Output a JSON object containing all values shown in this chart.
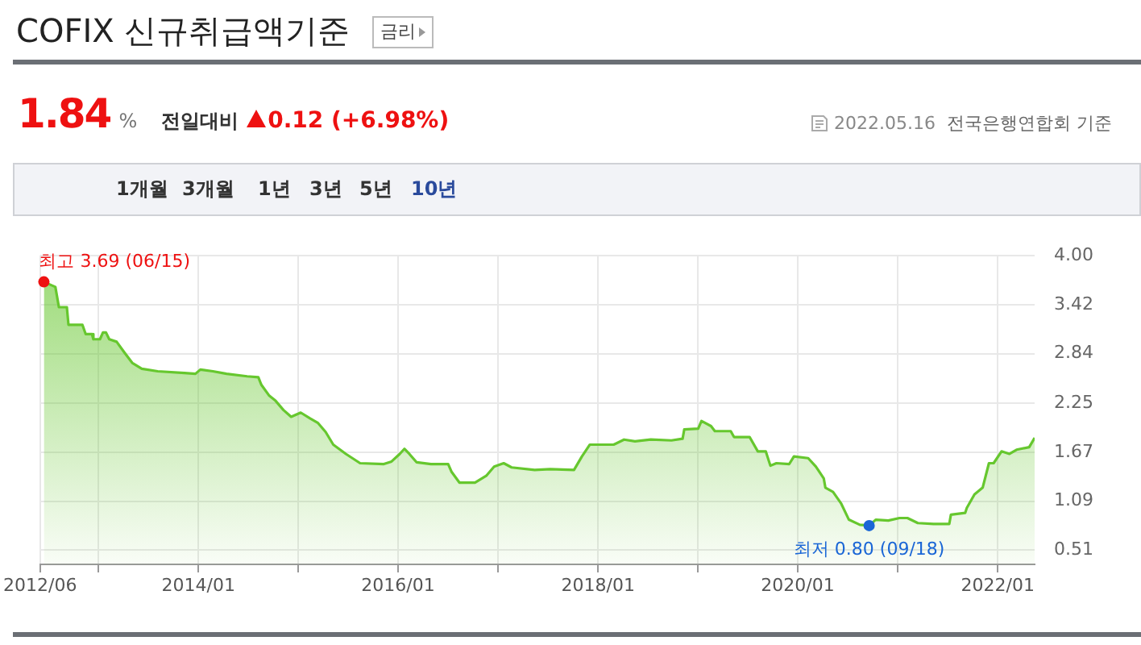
{
  "chart_data": {
    "type": "area",
    "title": "COFIX 신규취급액기준",
    "annotations": [
      {
        "text": "최고 3.69 (06/15)",
        "x": "2012-06-15",
        "y": 3.69
      },
      {
        "text": "최저 0.80 (09/18)",
        "x": "2020-09-18",
        "y": 0.8
      },
      "금리",
      "1.84",
      "%",
      "전일대비",
      "0.12 (+6.98%)",
      "2022.05.16",
      "전국은행연합회 기준",
      "1개월",
      "3개월",
      "1년",
      "3년",
      "5년",
      "10년"
    ],
    "x": [
      "2012-06-15",
      "2012-07-27",
      "2012-08-09",
      "2012-09-07",
      "2012-09-13",
      "2012-11-03",
      "2012-11-15",
      "2012-12-08",
      "2012-12-13",
      "2013-01-06",
      "2013-01-17",
      "2013-01-28",
      "2013-02-09",
      "2013-03-08",
      "2013-04-06",
      "2013-05-04",
      "2013-06-08",
      "2013-08-05",
      "2013-11-11",
      "2013-12-21",
      "2014-01-08",
      "2014-02-23",
      "2014-04-14",
      "2014-06-28",
      "2014-08-08",
      "2014-08-19",
      "2014-09-17",
      "2014-10-10",
      "2014-11-08",
      "2014-12-06",
      "2015-01-10",
      "2015-02-14",
      "2015-03-13",
      "2015-04-11",
      "2015-05-09",
      "2015-06-24",
      "2015-08-15",
      "2015-11-10",
      "2015-12-08",
      "2016-01-07",
      "2016-01-24",
      "2016-02-11",
      "2016-03-09",
      "2016-04-30",
      "2016-07-02",
      "2016-07-14",
      "2016-08-12",
      "2016-10-08",
      "2016-11-18",
      "2016-12-17",
      "2017-01-21",
      "2017-02-19",
      "2017-05-14",
      "2017-07-10",
      "2017-10-05",
      "2017-11-03",
      "2017-12-02",
      "2018-02-27",
      "2018-04-06",
      "2018-05-16",
      "2018-07-13",
      "2018-09-26",
      "2018-11-06",
      "2018-11-12",
      "2019-01-02",
      "2019-01-14",
      "2019-02-18",
      "2019-03-04",
      "2019-05-01",
      "2019-05-13",
      "2019-07-09",
      "2019-08-08",
      "2019-09-06",
      "2019-09-23",
      "2019-10-15",
      "2019-12-01",
      "2019-12-18",
      "2020-02-08",
      "2020-03-07",
      "2020-04-05",
      "2020-04-11",
      "2020-05-09",
      "2020-06-08",
      "2020-07-06",
      "2020-08-15",
      "2020-09-18",
      "2020-10-12",
      "2020-11-27",
      "2021-01-07",
      "2021-02-05",
      "2021-03-15",
      "2021-05-12",
      "2021-07-08",
      "2021-07-14",
      "2021-09-04",
      "2021-09-10",
      "2021-10-08",
      "2021-11-07",
      "2021-11-30",
      "2021-12-17",
      "2022-01-15",
      "2022-02-13",
      "2022-03-11",
      "2022-04-26",
      "2022-05-16"
    ],
    "series": [
      {
        "color": "#66c72e",
        "values": [
          3.69,
          3.63,
          3.39,
          3.39,
          3.18,
          3.18,
          3.07,
          3.07,
          3.01,
          3.01,
          3.09,
          3.09,
          3.01,
          2.98,
          2.85,
          2.73,
          2.66,
          2.63,
          2.61,
          2.6,
          2.65,
          2.63,
          2.6,
          2.57,
          2.56,
          2.47,
          2.34,
          2.28,
          2.17,
          2.09,
          2.14,
          2.07,
          2.02,
          1.91,
          1.76,
          1.65,
          1.54,
          1.53,
          1.56,
          1.65,
          1.71,
          1.65,
          1.55,
          1.53,
          1.53,
          1.44,
          1.31,
          1.31,
          1.39,
          1.5,
          1.54,
          1.49,
          1.46,
          1.47,
          1.46,
          1.62,
          1.76,
          1.76,
          1.82,
          1.8,
          1.82,
          1.81,
          1.83,
          1.94,
          1.95,
          2.04,
          1.98,
          1.92,
          1.92,
          1.85,
          1.85,
          1.68,
          1.68,
          1.51,
          1.54,
          1.53,
          1.62,
          1.6,
          1.5,
          1.36,
          1.25,
          1.2,
          1.06,
          0.87,
          0.81,
          0.8,
          0.87,
          0.86,
          0.89,
          0.89,
          0.83,
          0.82,
          0.82,
          0.93,
          0.95,
          1.01,
          1.17,
          1.25,
          1.54,
          1.54,
          1.68,
          1.65,
          1.7,
          1.73,
          1.84
        ]
      }
    ],
    "xlim": [
      "2012-06",
      "2022-05-16"
    ],
    "xticks": [
      {
        "value": "2012-06",
        "label": "2012/06"
      },
      {
        "value": "2013-01",
        "label": null
      },
      {
        "value": "2014-01",
        "label": "2014/01"
      },
      {
        "value": "2015-01",
        "label": null
      },
      {
        "value": "2016-01",
        "label": "2016/01"
      },
      {
        "value": "2017-01",
        "label": null
      },
      {
        "value": "2018-01",
        "label": "2018/01"
      },
      {
        "value": "2019-01",
        "label": null
      },
      {
        "value": "2020-01",
        "label": "2020/01"
      },
      {
        "value": "2021-01",
        "label": null
      },
      {
        "value": "2022-01",
        "label": "2022/01"
      }
    ],
    "ylim": [
      0.34,
      4.0
    ],
    "yticks": [
      0.51,
      1.09,
      1.67,
      2.25,
      2.84,
      3.42,
      {
        "value": 4,
        "label": "4.00"
      }
    ],
    "grid": true,
    "marker": "none",
    "legend": false
  }
}
